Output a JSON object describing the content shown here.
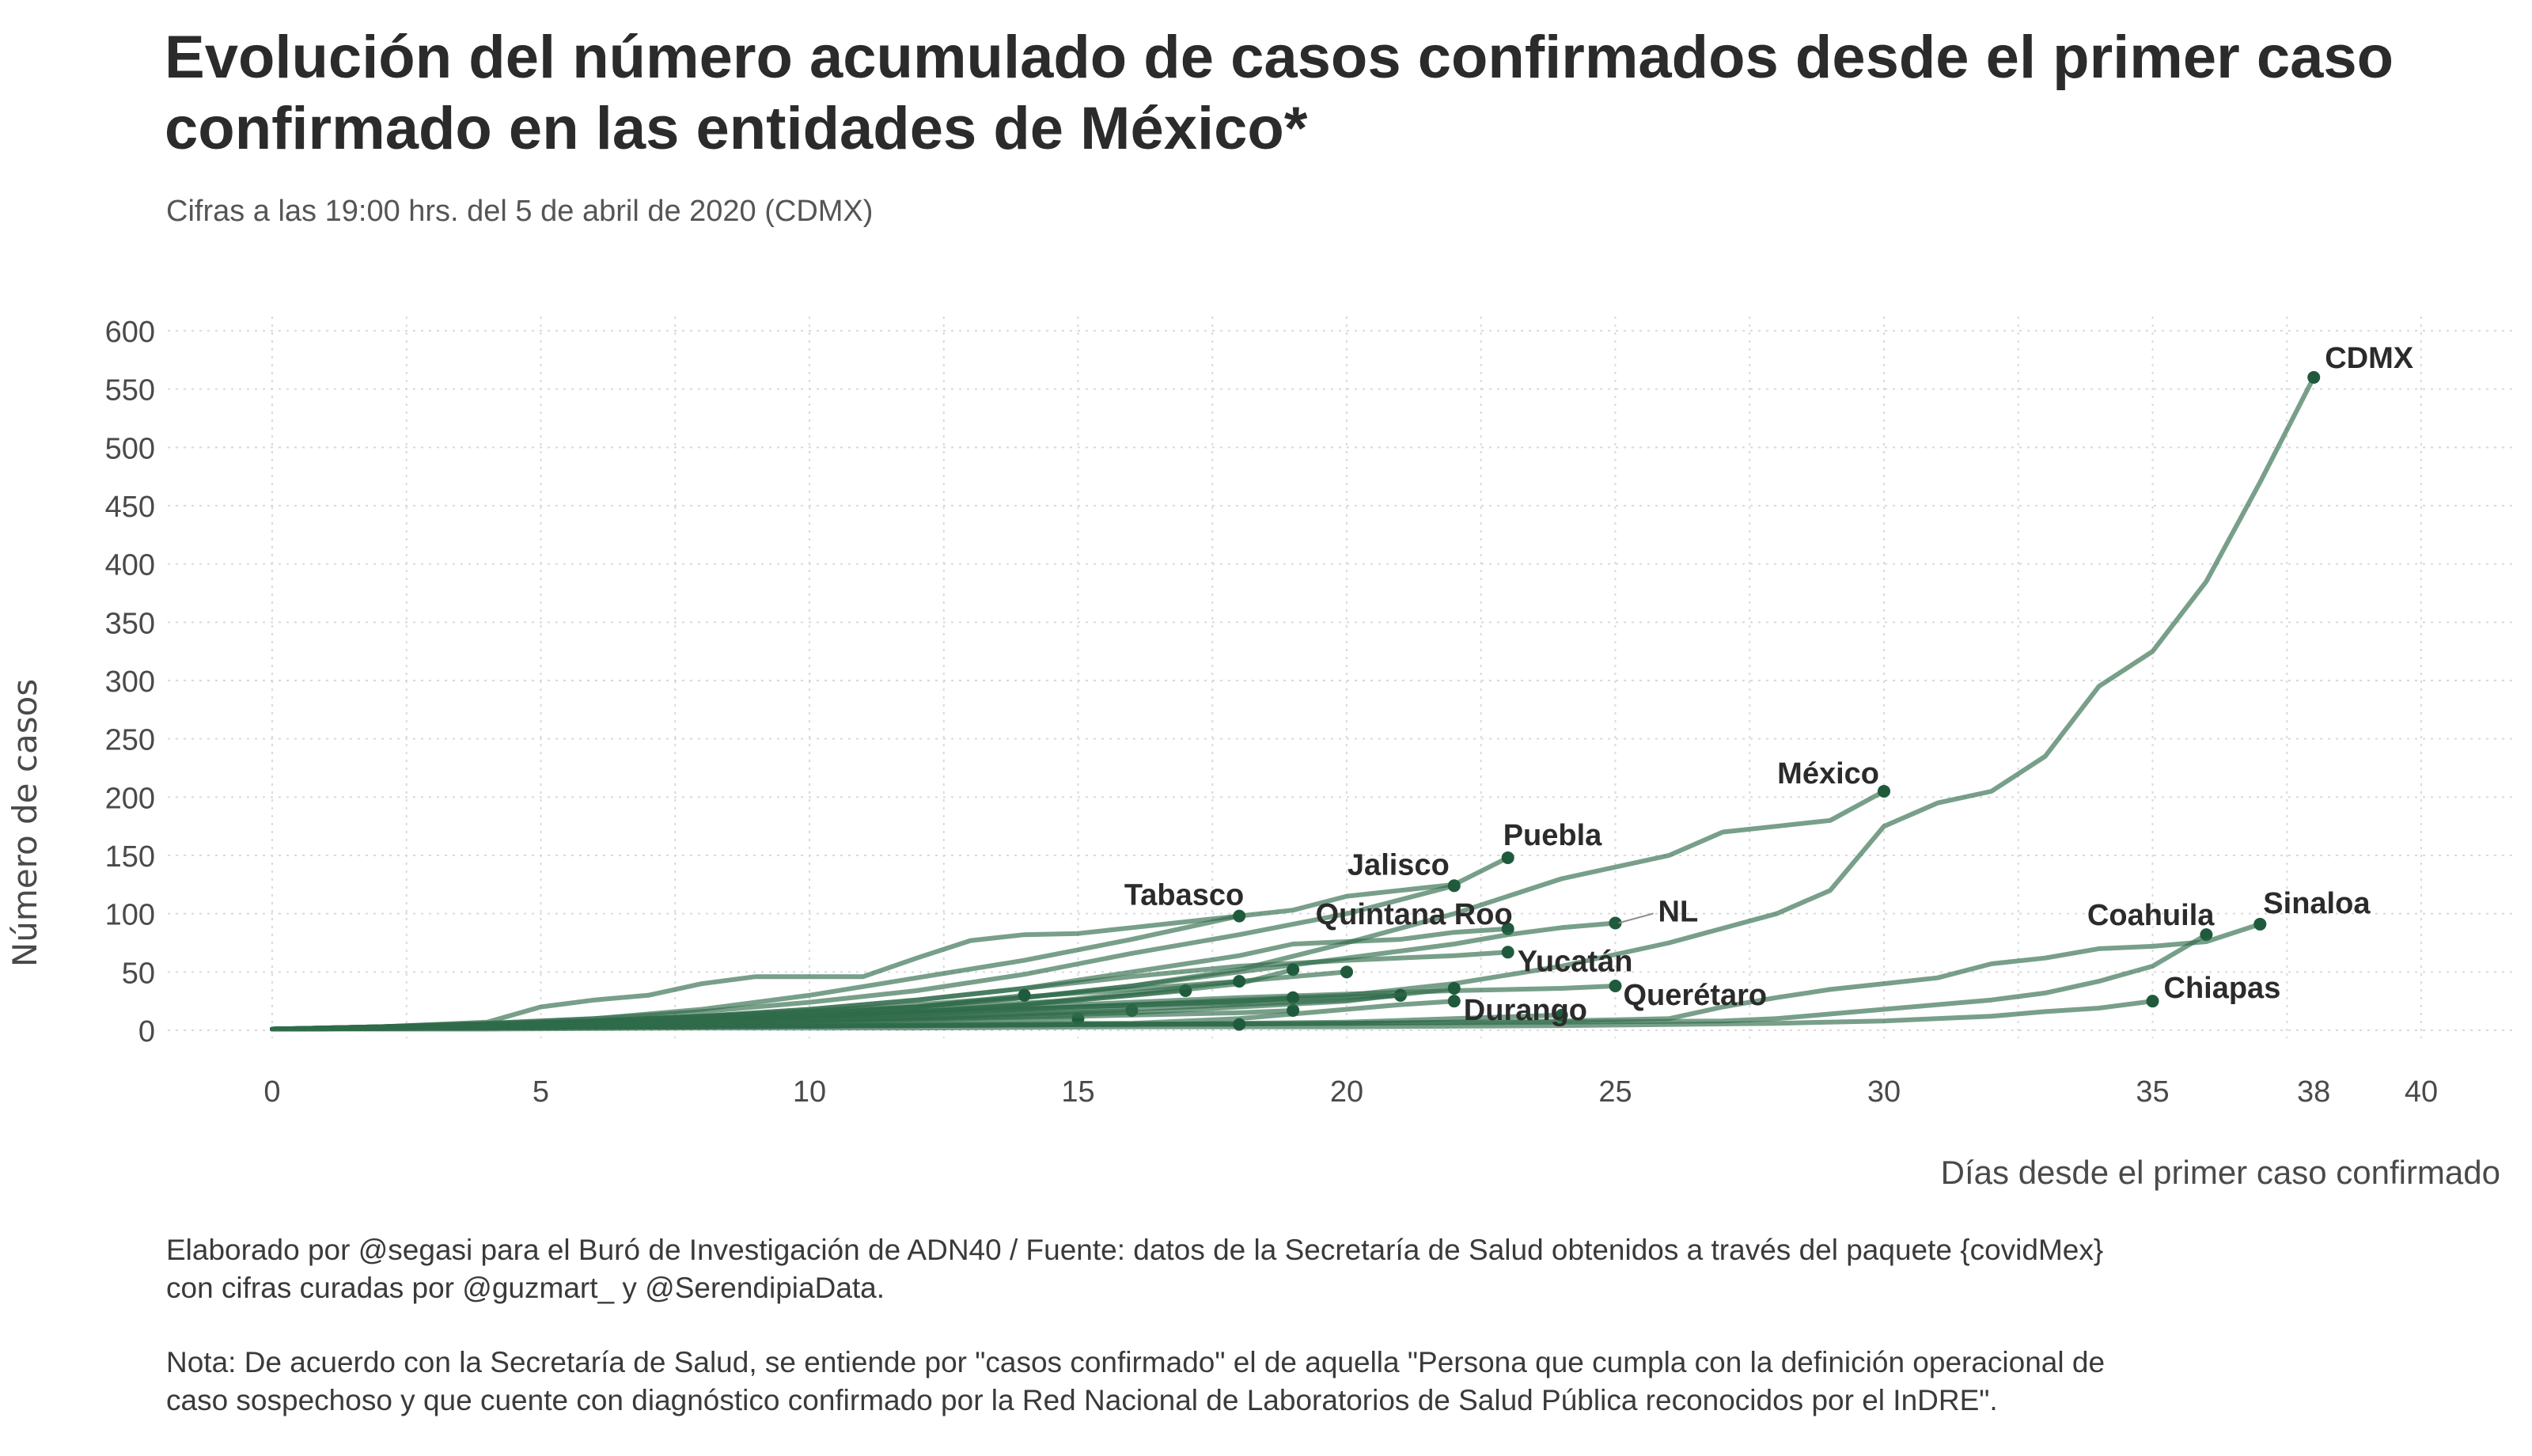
{
  "title": {
    "line1": "Evolución del número acumulado de casos confirmados desde el primer caso",
    "line2": "confirmado en las entidades de México*"
  },
  "subtitle": "Cifras a las 19:00 hrs. del 5 de abril de 2020 (CDMX)",
  "footer": {
    "source_line1": "Elaborado por @segasi  para el Buró de Investigación de ADN40 / Fuente: datos de la Secretaría de Salud obtenidos a través del paquete {covidMex}",
    "source_line2": "con cifras curadas por @guzmart_ y  @SerendipiaData.",
    "note_line1": "Nota: De acuerdo con la Secretaría de Salud, se entiende por \"casos confirmado\" el de aquella \"Persona que cumpla con la definición operacional de",
    "note_line2": "caso sospechoso y que cuente con diagnóstico confirmado por la Red Nacional de Laboratorios de Salud Pública reconocidos por el InDRE\"."
  },
  "chart_data": {
    "type": "line",
    "xlabel": "Días desde el primer caso confirmado",
    "ylabel": "Número de casos",
    "xlim": [
      0,
      40
    ],
    "ylim": [
      0,
      600
    ],
    "x_ticks": [
      0,
      5,
      10,
      15,
      20,
      25,
      30,
      35,
      38,
      40
    ],
    "y_ticks": [
      0,
      50,
      100,
      150,
      200,
      250,
      300,
      350,
      400,
      450,
      500,
      550,
      600
    ],
    "grid": true,
    "legend": "none",
    "colors": {
      "line": "#2f6b4a",
      "endpoint": "#1f5a3c",
      "text": "#2b2b2b",
      "grid": "#d9d9d9",
      "axis_text": "#4a4a4a"
    },
    "series": [
      {
        "name": "CDMX",
        "x": [
          0,
          2,
          4,
          6,
          8,
          10,
          12,
          14,
          16,
          18,
          20,
          22,
          24,
          26,
          28,
          29,
          30,
          31,
          32,
          33,
          34,
          35,
          36,
          37,
          38
        ],
        "y": [
          1,
          3,
          5,
          7,
          9,
          11,
          14,
          18,
          22,
          26,
          30,
          40,
          55,
          75,
          100,
          120,
          175,
          195,
          205,
          235,
          295,
          325,
          385,
          470,
          560
        ]
      },
      {
        "name": "México",
        "x": [
          0,
          2,
          4,
          6,
          8,
          10,
          12,
          14,
          16,
          18,
          20,
          22,
          24,
          26,
          27,
          28,
          29,
          30
        ],
        "y": [
          1,
          3,
          5,
          8,
          12,
          16,
          20,
          28,
          38,
          52,
          75,
          100,
          130,
          150,
          170,
          175,
          180,
          205
        ]
      },
      {
        "name": "Puebla",
        "x": [
          0,
          2,
          4,
          5,
          6,
          7,
          8,
          9,
          11,
          12,
          13,
          14,
          15,
          16,
          18,
          19,
          20,
          21,
          22,
          23
        ],
        "y": [
          1,
          3,
          7,
          20,
          26,
          30,
          40,
          46,
          46,
          62,
          77,
          82,
          83,
          88,
          98,
          103,
          115,
          120,
          125,
          148
        ]
      },
      {
        "name": "Jalisco",
        "x": [
          0,
          2,
          4,
          6,
          8,
          10,
          12,
          14,
          16,
          18,
          20,
          22
        ],
        "y": [
          1,
          3,
          6,
          10,
          16,
          24,
          34,
          48,
          66,
          82,
          100,
          124
        ]
      },
      {
        "name": "Tabasco",
        "x": [
          0,
          2,
          4,
          6,
          8,
          10,
          12,
          14,
          16,
          18
        ],
        "y": [
          1,
          3,
          6,
          10,
          18,
          30,
          45,
          60,
          78,
          98
        ]
      },
      {
        "name": "Quintana Roo",
        "x": [
          0,
          2,
          4,
          6,
          8,
          10,
          12,
          14,
          16,
          18,
          19,
          20,
          21,
          22,
          23
        ],
        "y": [
          1,
          3,
          5,
          8,
          12,
          18,
          26,
          36,
          50,
          64,
          74,
          76,
          78,
          84,
          87
        ]
      },
      {
        "name": "NL",
        "x": [
          0,
          2,
          4,
          6,
          8,
          10,
          12,
          14,
          16,
          18,
          20,
          22,
          23,
          24,
          25
        ],
        "y": [
          1,
          2,
          4,
          6,
          10,
          14,
          20,
          28,
          38,
          50,
          62,
          74,
          82,
          88,
          92
        ]
      },
      {
        "name": "Yucatán",
        "x": [
          0,
          2,
          4,
          6,
          8,
          10,
          12,
          14,
          16,
          18,
          20,
          22,
          23
        ],
        "y": [
          1,
          3,
          5,
          8,
          12,
          18,
          26,
          36,
          46,
          55,
          60,
          64,
          67
        ]
      },
      {
        "name": "Coahuila",
        "x": [
          0,
          4,
          8,
          12,
          16,
          20,
          24,
          27,
          28,
          29,
          30,
          31,
          32,
          33,
          34,
          35,
          36
        ],
        "y": [
          1,
          2,
          3,
          4,
          5,
          6,
          7,
          8,
          10,
          14,
          18,
          22,
          26,
          32,
          42,
          55,
          82
        ]
      },
      {
        "name": "Sinaloa",
        "x": [
          0,
          4,
          8,
          12,
          16,
          20,
          24,
          26,
          27,
          28,
          29,
          30,
          31,
          32,
          33,
          34,
          35,
          36,
          37
        ],
        "y": [
          1,
          2,
          3,
          4,
          5,
          6,
          8,
          10,
          20,
          28,
          35,
          40,
          45,
          57,
          62,
          70,
          72,
          76,
          91
        ]
      },
      {
        "name": "Chiapas",
        "x": [
          0,
          4,
          8,
          12,
          16,
          20,
          24,
          28,
          30,
          32,
          33,
          34,
          35
        ],
        "y": [
          1,
          1,
          2,
          2,
          3,
          3,
          4,
          6,
          8,
          12,
          16,
          19,
          25
        ]
      },
      {
        "name": "Querétaro",
        "x": [
          0,
          2,
          4,
          6,
          8,
          10,
          12,
          14,
          16,
          18,
          20,
          22,
          24,
          25
        ],
        "y": [
          1,
          2,
          4,
          6,
          9,
          12,
          16,
          20,
          24,
          28,
          31,
          34,
          36,
          38
        ]
      },
      {
        "name": "Durango",
        "x": [
          0,
          4,
          8,
          12,
          16,
          18,
          20,
          21,
          22
        ],
        "y": [
          1,
          2,
          3,
          4,
          6,
          10,
          18,
          22,
          25
        ]
      },
      {
        "name": "",
        "x": [
          0,
          4,
          8,
          12,
          16,
          20,
          22,
          24
        ],
        "y": [
          1,
          2,
          3,
          4,
          5,
          7,
          10,
          13
        ]
      },
      {
        "name": "",
        "x": [
          0,
          3,
          6,
          9,
          12,
          15,
          18,
          21
        ],
        "y": [
          1,
          3,
          6,
          10,
          15,
          20,
          25,
          30
        ]
      },
      {
        "name": "",
        "x": [
          0,
          3,
          6,
          9,
          12,
          14,
          16,
          18,
          19
        ],
        "y": [
          1,
          3,
          6,
          10,
          16,
          22,
          30,
          40,
          52
        ]
      },
      {
        "name": "",
        "x": [
          0,
          3,
          6,
          9,
          12,
          15,
          18,
          20
        ],
        "y": [
          1,
          4,
          8,
          14,
          22,
          32,
          42,
          50
        ]
      },
      {
        "name": "",
        "x": [
          0,
          3,
          6,
          9,
          12,
          15,
          17
        ],
        "y": [
          1,
          3,
          7,
          12,
          18,
          26,
          34
        ]
      },
      {
        "name": "",
        "x": [
          0,
          3,
          6,
          9,
          12,
          14,
          16,
          18
        ],
        "y": [
          1,
          2,
          5,
          10,
          16,
          22,
          32,
          42
        ]
      },
      {
        "name": "",
        "x": [
          0,
          3,
          6,
          9,
          12,
          15
        ],
        "y": [
          1,
          2,
          4,
          6,
          8,
          10
        ]
      },
      {
        "name": "",
        "x": [
          0,
          3,
          6,
          9,
          12,
          14
        ],
        "y": [
          1,
          3,
          6,
          12,
          20,
          30
        ]
      },
      {
        "name": "",
        "x": [
          0,
          3,
          6,
          9,
          12,
          16
        ],
        "y": [
          1,
          2,
          4,
          7,
          11,
          17
        ]
      },
      {
        "name": "",
        "x": [
          0,
          3,
          6,
          9,
          12,
          15,
          18
        ],
        "y": [
          1,
          2,
          3,
          4,
          5,
          6,
          5
        ]
      },
      {
        "name": "",
        "x": [
          0,
          3,
          6,
          9,
          12,
          15,
          18,
          19
        ],
        "y": [
          1,
          2,
          4,
          6,
          9,
          12,
          15,
          17
        ]
      },
      {
        "name": "",
        "x": [
          0,
          3,
          6,
          9,
          12,
          15,
          18,
          20,
          21
        ],
        "y": [
          1,
          2,
          4,
          7,
          11,
          16,
          22,
          26,
          30
        ]
      },
      {
        "name": "",
        "x": [
          0,
          3,
          6,
          9,
          12,
          15,
          18,
          19
        ],
        "y": [
          1,
          3,
          6,
          10,
          14,
          20,
          24,
          28
        ]
      },
      {
        "name": "",
        "x": [
          0,
          4,
          8,
          12,
          16,
          20,
          22
        ],
        "y": [
          1,
          3,
          6,
          10,
          15,
          25,
          36
        ]
      }
    ],
    "labels": [
      {
        "text": "CDMX",
        "series": 0
      },
      {
        "text": "México",
        "series": 1
      },
      {
        "text": "Puebla",
        "series": 2
      },
      {
        "text": "Jalisco",
        "series": 3
      },
      {
        "text": "Tabasco",
        "series": 4
      },
      {
        "text": "Quintana Roo",
        "series": 5
      },
      {
        "text": "NL",
        "series": 6
      },
      {
        "text": "Yucatán",
        "series": 7
      },
      {
        "text": "Coahuila",
        "series": 8
      },
      {
        "text": "Sinaloa",
        "series": 9
      },
      {
        "text": "Chiapas",
        "series": 10
      },
      {
        "text": "Querétaro",
        "series": 11
      },
      {
        "text": "Durango",
        "series": 12
      }
    ]
  }
}
